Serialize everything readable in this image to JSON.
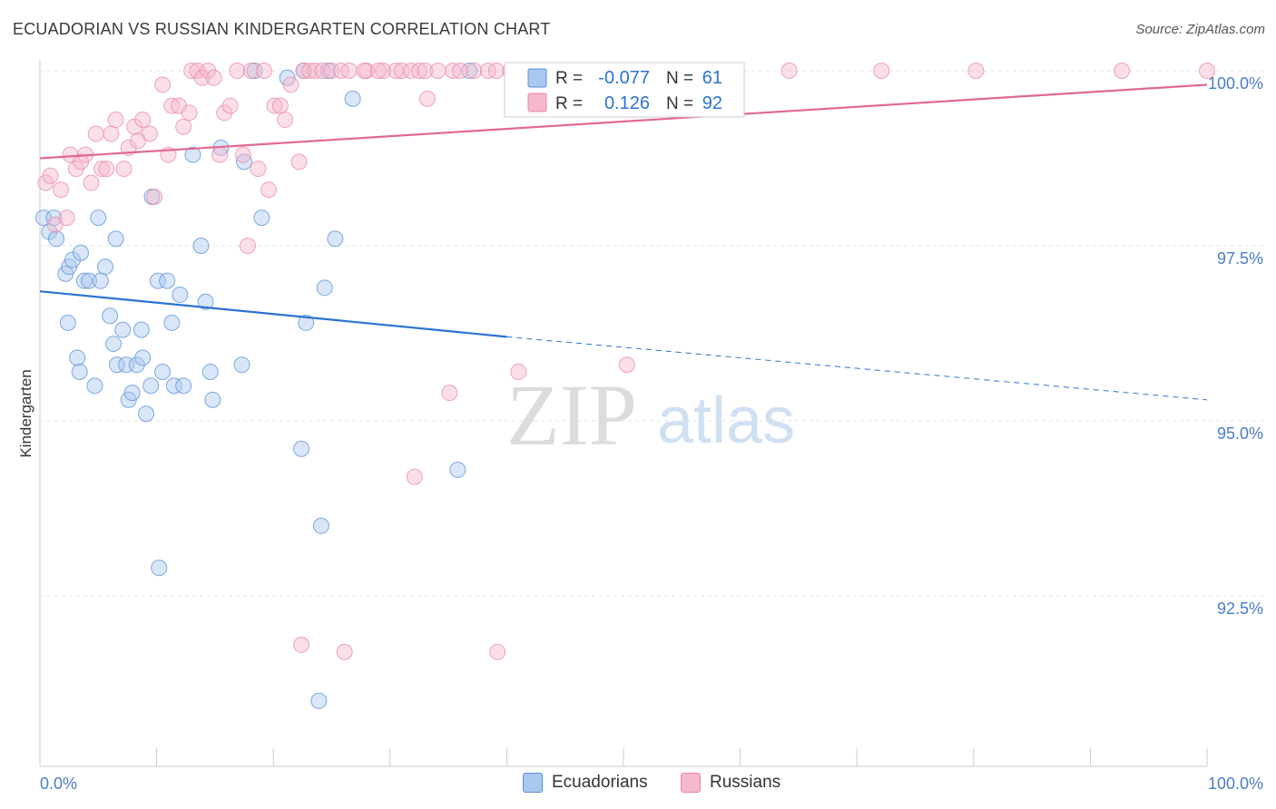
{
  "header": {
    "title": "ECUADORIAN VS RUSSIAN KINDERGARTEN CORRELATION CHART",
    "source": "Source: ZipAtlas.com"
  },
  "watermark": {
    "zip": "ZIP",
    "atlas": "atlas"
  },
  "legend_box": {
    "rows": [
      {
        "r_label": "R =",
        "r_value": "-0.077",
        "n_label": "N =",
        "n_value": "61"
      },
      {
        "r_label": "R =",
        "r_value": "0.126",
        "n_label": "N =",
        "n_value": "92"
      }
    ]
  },
  "chart_data": {
    "type": "scatter",
    "title": "ECUADORIAN VS RUSSIAN KINDERGARTEN CORRELATION CHART",
    "xlabel": "",
    "ylabel": "Kindergarten",
    "xlim": [
      0,
      100
    ],
    "ylim": [
      90.0,
      100.4
    ],
    "x_tick_labels": [
      "0.0%",
      "100.0%"
    ],
    "y_ticks": [
      92.5,
      95.0,
      97.5,
      100.0
    ],
    "y_tick_labels": [
      "92.5%",
      "95.0%",
      "97.5%",
      "100.0%"
    ],
    "grid": "horizontal dashed",
    "legend_position": "bottom",
    "colors": {
      "Ecuadorians": {
        "fill": "#a8c8f0",
        "stroke": "#5b8fd6",
        "line": "#2b73d3"
      },
      "Russians": {
        "fill": "#f6b8cc",
        "stroke": "#e889a8",
        "line": "#e2688f"
      }
    },
    "series": [
      {
        "name": "Ecuadorians",
        "R": -0.077,
        "N": 61,
        "trend": {
          "x0": 0,
          "y0": 96.85,
          "x1": 40,
          "y1": 96.2,
          "dash_to_x": 100,
          "dash_to_y": 95.3
        },
        "points": [
          [
            0.3,
            97.9
          ],
          [
            0.8,
            97.7
          ],
          [
            1.2,
            97.9
          ],
          [
            1.4,
            97.6
          ],
          [
            2.2,
            97.1
          ],
          [
            2.5,
            97.2
          ],
          [
            2.4,
            96.4
          ],
          [
            2.8,
            97.3
          ],
          [
            3.2,
            95.9
          ],
          [
            3.4,
            95.7
          ],
          [
            3.5,
            97.4
          ],
          [
            3.8,
            97.0
          ],
          [
            4.2,
            97.0
          ],
          [
            4.7,
            95.5
          ],
          [
            5.0,
            97.9
          ],
          [
            5.2,
            97.0
          ],
          [
            5.6,
            97.2
          ],
          [
            6.0,
            96.5
          ],
          [
            6.3,
            96.1
          ],
          [
            6.5,
            97.6
          ],
          [
            6.6,
            95.8
          ],
          [
            7.1,
            96.3
          ],
          [
            7.4,
            95.8
          ],
          [
            7.6,
            95.3
          ],
          [
            7.9,
            95.4
          ],
          [
            8.3,
            95.8
          ],
          [
            8.7,
            96.3
          ],
          [
            8.8,
            95.9
          ],
          [
            9.1,
            95.1
          ],
          [
            9.5,
            95.5
          ],
          [
            9.6,
            98.2
          ],
          [
            10.1,
            97.0
          ],
          [
            10.5,
            95.7
          ],
          [
            10.9,
            97.0
          ],
          [
            11.3,
            96.4
          ],
          [
            11.5,
            95.5
          ],
          [
            12.0,
            96.8
          ],
          [
            12.3,
            95.5
          ],
          [
            13.1,
            98.8
          ],
          [
            13.8,
            97.5
          ],
          [
            14.2,
            96.7
          ],
          [
            14.6,
            95.7
          ],
          [
            14.8,
            95.3
          ],
          [
            15.5,
            98.9
          ],
          [
            17.3,
            95.8
          ],
          [
            17.5,
            98.7
          ],
          [
            18.4,
            100.0
          ],
          [
            19.0,
            97.9
          ],
          [
            21.2,
            99.9
          ],
          [
            22.4,
            94.6
          ],
          [
            22.6,
            100.0
          ],
          [
            22.8,
            96.4
          ],
          [
            23.9,
            91.0
          ],
          [
            24.1,
            93.5
          ],
          [
            24.4,
            96.9
          ],
          [
            24.7,
            100.0
          ],
          [
            25.3,
            97.6
          ],
          [
            26.8,
            99.6
          ],
          [
            35.8,
            94.3
          ],
          [
            10.2,
            92.9
          ],
          [
            36.8,
            100.0
          ]
        ]
      },
      {
        "name": "Russians",
        "R": 0.126,
        "N": 92,
        "trend": {
          "x0": 0,
          "y0": 98.75,
          "x1": 100,
          "y1": 99.8
        },
        "points": [
          [
            0.5,
            98.4
          ],
          [
            0.9,
            98.5
          ],
          [
            1.3,
            97.8
          ],
          [
            1.8,
            98.3
          ],
          [
            2.3,
            97.9
          ],
          [
            2.6,
            98.8
          ],
          [
            3.1,
            98.6
          ],
          [
            3.5,
            98.7
          ],
          [
            3.9,
            98.8
          ],
          [
            4.4,
            98.4
          ],
          [
            4.8,
            99.1
          ],
          [
            5.3,
            98.6
          ],
          [
            5.7,
            98.6
          ],
          [
            6.1,
            99.1
          ],
          [
            6.5,
            99.3
          ],
          [
            7.2,
            98.6
          ],
          [
            7.6,
            98.9
          ],
          [
            8.1,
            99.2
          ],
          [
            8.4,
            99.0
          ],
          [
            8.8,
            99.3
          ],
          [
            9.4,
            99.1
          ],
          [
            9.8,
            98.2
          ],
          [
            10.5,
            99.8
          ],
          [
            11.0,
            98.8
          ],
          [
            11.3,
            99.5
          ],
          [
            11.9,
            99.5
          ],
          [
            12.3,
            99.2
          ],
          [
            12.8,
            99.4
          ],
          [
            13.0,
            100.0
          ],
          [
            13.5,
            100.0
          ],
          [
            13.9,
            99.9
          ],
          [
            14.4,
            100.0
          ],
          [
            14.9,
            99.9
          ],
          [
            15.4,
            98.8
          ],
          [
            15.8,
            99.4
          ],
          [
            16.3,
            99.5
          ],
          [
            16.9,
            100.0
          ],
          [
            17.4,
            98.8
          ],
          [
            17.8,
            97.5
          ],
          [
            18.1,
            100.0
          ],
          [
            18.7,
            98.6
          ],
          [
            19.2,
            100.0
          ],
          [
            19.6,
            98.3
          ],
          [
            20.1,
            99.5
          ],
          [
            20.6,
            99.5
          ],
          [
            21.0,
            99.3
          ],
          [
            21.5,
            99.8
          ],
          [
            22.2,
            98.7
          ],
          [
            22.6,
            100.0
          ],
          [
            23.1,
            100.0
          ],
          [
            23.6,
            100.0
          ],
          [
            24.2,
            100.0
          ],
          [
            25.0,
            100.0
          ],
          [
            25.8,
            100.0
          ],
          [
            26.5,
            100.0
          ],
          [
            28.0,
            100.0
          ],
          [
            29.4,
            100.0
          ],
          [
            30.5,
            100.0
          ],
          [
            31.0,
            100.0
          ],
          [
            31.8,
            100.0
          ],
          [
            32.5,
            100.0
          ],
          [
            33.0,
            100.0
          ],
          [
            34.1,
            100.0
          ],
          [
            35.4,
            100.0
          ],
          [
            36.0,
            100.0
          ],
          [
            37.2,
            100.0
          ],
          [
            38.4,
            100.0
          ],
          [
            39.1,
            100.0
          ],
          [
            40.3,
            100.0
          ],
          [
            41.5,
            100.0
          ],
          [
            42.9,
            100.0
          ],
          [
            44.1,
            100.0
          ],
          [
            46.8,
            100.0
          ],
          [
            49.0,
            100.0
          ],
          [
            51.5,
            100.0
          ],
          [
            55.0,
            100.0
          ],
          [
            59.5,
            100.0
          ],
          [
            64.2,
            100.0
          ],
          [
            72.1,
            100.0
          ],
          [
            80.2,
            100.0
          ],
          [
            92.7,
            100.0
          ],
          [
            100.0,
            100.0
          ],
          [
            27.8,
            100.0
          ],
          [
            29.0,
            100.0
          ],
          [
            33.2,
            99.6
          ],
          [
            35.1,
            95.4
          ],
          [
            41.0,
            95.7
          ],
          [
            50.3,
            95.8
          ],
          [
            32.1,
            94.2
          ],
          [
            22.4,
            91.8
          ],
          [
            26.1,
            91.7
          ],
          [
            39.2,
            91.7
          ]
        ]
      }
    ]
  },
  "legend_bottom": [
    {
      "label": "Ecuadorians",
      "color": "#a8c8f0",
      "border": "#5b8fd6"
    },
    {
      "label": "Russians",
      "color": "#f6b8cc",
      "border": "#e889a8"
    }
  ]
}
